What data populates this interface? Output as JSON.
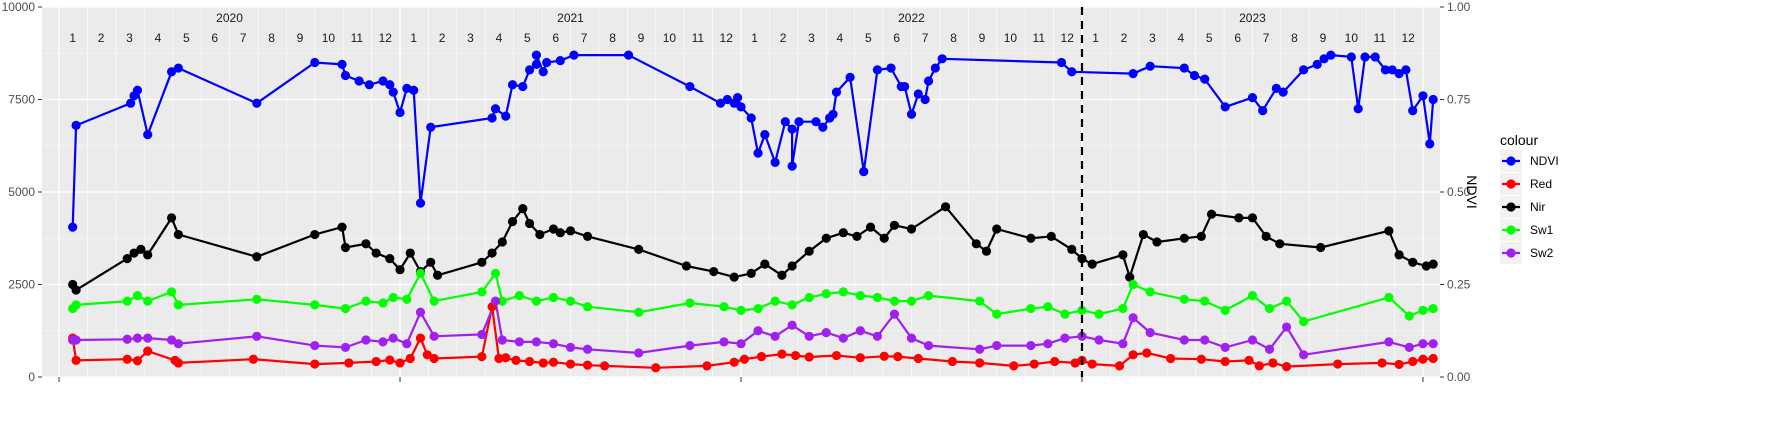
{
  "chart_data": {
    "type": "line",
    "title": "",
    "xlabel": "",
    "ylabel_left": "",
    "ylabel_right": "NDVI",
    "ylim_left": [
      0,
      10000
    ],
    "ylim_right": [
      0,
      1
    ],
    "yticks_left": [
      "0",
      "2500",
      "5000",
      "7500",
      "10000"
    ],
    "yticks_left_values": [
      0,
      2500,
      5000,
      7500,
      10000
    ],
    "yticks_right": [
      "0.00",
      "0.25",
      "0.50",
      "0.75",
      "1.00"
    ],
    "yticks_right_values": [
      0,
      0.25,
      0.5,
      0.75,
      1.0
    ],
    "xlim": [
      2019.95,
      2024.05
    ],
    "year_labels": [
      "2020",
      "2021",
      "2022",
      "2023"
    ],
    "year_positions": [
      2020.5,
      2021.5,
      2022.5,
      2023.5
    ],
    "month_labels": [
      "1",
      "2",
      "3",
      "4",
      "5",
      "6",
      "7",
      "8",
      "9",
      "10",
      "11",
      "12",
      "1",
      "2",
      "3",
      "4",
      "5",
      "6",
      "7",
      "8",
      "9",
      "10",
      "11",
      "12",
      "1",
      "2",
      "3",
      "4",
      "5",
      "6",
      "7",
      "8",
      "9",
      "10",
      "11",
      "12",
      "1",
      "2",
      "3",
      "4",
      "5",
      "6",
      "7",
      "8",
      "9",
      "10",
      "11",
      "12"
    ],
    "x_major_breaks": [
      2020,
      2021,
      2022,
      2023,
      2024
    ],
    "vline_x": 2023.0,
    "grid": true,
    "background": "#EBEBEB",
    "legend": {
      "title": "colour",
      "position": "right",
      "entries": [
        "NDVI",
        "Red",
        "Nir",
        "Sw1",
        "Sw2"
      ]
    },
    "series": [
      {
        "name": "NDVI",
        "color": "#0000FF",
        "x": [
          2020.04,
          2020.05,
          2020.21,
          2020.22,
          2020.23,
          2020.26,
          2020.33,
          2020.35,
          2020.58,
          2020.75,
          2020.83,
          2020.84,
          2020.88,
          2020.91,
          2020.95,
          2020.97,
          2020.98,
          2021.0,
          2021.02,
          2021.04,
          2021.06,
          2021.09,
          2021.27,
          2021.28,
          2021.31,
          2021.33,
          2021.36,
          2021.38,
          2021.4,
          2021.4,
          2021.42,
          2021.43,
          2021.47,
          2021.51,
          2021.67,
          2021.85,
          2021.94,
          2021.96,
          2021.98,
          2021.99,
          2022.0,
          2022.03,
          2022.05,
          2022.07,
          2022.1,
          2022.13,
          2022.15,
          2022.15,
          2022.17,
          2022.22,
          2022.24,
          2022.26,
          2022.27,
          2022.28,
          2022.32,
          2022.36,
          2022.4,
          2022.44,
          2022.47,
          2022.48,
          2022.5,
          2022.52,
          2022.54,
          2022.55,
          2022.57,
          2022.59,
          2022.94,
          2022.97,
          2023.15,
          2023.2,
          2023.3,
          2023.33,
          2023.36,
          2023.42,
          2023.5,
          2023.53,
          2023.57,
          2023.59,
          2023.65,
          2023.69,
          2023.71,
          2023.73,
          2023.79,
          2023.81,
          2023.83,
          2023.86,
          2023.89,
          2023.91,
          2023.93,
          2023.95,
          2023.97,
          2024.0,
          2024.02,
          2024.03
        ],
        "y": [
          4050,
          6800,
          7400,
          7600,
          7750,
          6550,
          8250,
          8350,
          7400,
          8500,
          8450,
          8150,
          8000,
          7900,
          8000,
          7900,
          7700,
          7150,
          7800,
          7750,
          4700,
          6750,
          7000,
          7250,
          7050,
          7900,
          7850,
          8300,
          8450,
          8700,
          8250,
          8500,
          8550,
          8700,
          8700,
          7850,
          7400,
          7500,
          7400,
          7550,
          7300,
          7000,
          6050,
          6550,
          5800,
          6900,
          6700,
          5700,
          6900,
          6900,
          6750,
          7000,
          7100,
          7700,
          8100,
          5550,
          8300,
          8350,
          7850,
          7850,
          7100,
          7650,
          7500,
          8000,
          8350,
          8600,
          8500,
          8250,
          8200,
          8400,
          8350,
          8150,
          8050,
          7300,
          7550,
          7200,
          7800,
          7700,
          8300,
          8450,
          8600,
          8700,
          8650,
          7250,
          8650,
          8650,
          8300,
          8300,
          8200,
          8300,
          7200,
          7600,
          6300,
          7500
        ]
      },
      {
        "name": "Red",
        "color": "#FF0000",
        "x": [
          2020.04,
          2020.05,
          2020.2,
          2020.23,
          2020.26,
          2020.34,
          2020.35,
          2020.57,
          2020.75,
          2020.85,
          2020.93,
          2020.97,
          2021.0,
          2021.03,
          2021.06,
          2021.08,
          2021.1,
          2021.24,
          2021.27,
          2021.29,
          2021.31,
          2021.34,
          2021.38,
          2021.42,
          2021.45,
          2021.5,
          2021.55,
          2021.6,
          2021.75,
          2021.9,
          2021.98,
          2022.01,
          2022.06,
          2022.12,
          2022.16,
          2022.2,
          2022.28,
          2022.35,
          2022.42,
          2022.46,
          2022.52,
          2022.62,
          2022.7,
          2022.8,
          2022.86,
          2022.92,
          2022.98,
          2023.0,
          2023.03,
          2023.11,
          2023.15,
          2023.19,
          2023.26,
          2023.35,
          2023.42,
          2023.49,
          2023.52,
          2023.56,
          2023.6,
          2023.75,
          2023.88,
          2023.93,
          2023.97,
          2024.0,
          2024.03
        ],
        "y": [
          1050,
          450,
          480,
          440,
          700,
          450,
          380,
          480,
          350,
          380,
          420,
          460,
          380,
          500,
          1050,
          600,
          500,
          550,
          1900,
          500,
          520,
          450,
          420,
          380,
          400,
          350,
          320,
          300,
          250,
          300,
          400,
          480,
          550,
          620,
          580,
          540,
          580,
          520,
          560,
          550,
          500,
          420,
          380,
          300,
          350,
          420,
          380,
          450,
          350,
          300,
          600,
          650,
          500,
          480,
          420,
          450,
          300,
          380,
          280,
          350,
          380,
          340,
          420,
          480,
          500
        ]
      },
      {
        "name": "Nir",
        "color": "#000000",
        "x": [
          2020.04,
          2020.05,
          2020.2,
          2020.22,
          2020.24,
          2020.26,
          2020.33,
          2020.35,
          2020.58,
          2020.75,
          2020.83,
          2020.84,
          2020.9,
          2020.93,
          2020.97,
          2021.0,
          2021.03,
          2021.06,
          2021.09,
          2021.11,
          2021.24,
          2021.27,
          2021.3,
          2021.33,
          2021.36,
          2021.38,
          2021.41,
          2021.45,
          2021.47,
          2021.5,
          2021.55,
          2021.7,
          2021.84,
          2021.92,
          2021.98,
          2022.03,
          2022.07,
          2022.12,
          2022.15,
          2022.2,
          2022.25,
          2022.3,
          2022.34,
          2022.38,
          2022.42,
          2022.45,
          2022.5,
          2022.6,
          2022.69,
          2022.72,
          2022.75,
          2022.85,
          2022.91,
          2022.97,
          2023.0,
          2023.03,
          2023.12,
          2023.14,
          2023.18,
          2023.22,
          2023.3,
          2023.35,
          2023.38,
          2023.46,
          2023.5,
          2023.54,
          2023.58,
          2023.7,
          2023.9,
          2023.93,
          2023.97,
          2024.01,
          2024.03
        ],
        "y": [
          2500,
          2350,
          3200,
          3350,
          3450,
          3300,
          4300,
          3850,
          3250,
          3850,
          4050,
          3500,
          3600,
          3350,
          3200,
          2900,
          3350,
          2850,
          3100,
          2750,
          3100,
          3350,
          3650,
          4200,
          4550,
          4150,
          3850,
          4000,
          3900,
          3950,
          3800,
          3450,
          3000,
          2850,
          2700,
          2800,
          3050,
          2750,
          3000,
          3400,
          3750,
          3900,
          3800,
          4050,
          3750,
          4100,
          4000,
          4600,
          3600,
          3400,
          4000,
          3750,
          3800,
          3450,
          3200,
          3050,
          3300,
          2700,
          3850,
          3650,
          3750,
          3800,
          4400,
          4300,
          4300,
          3800,
          3600,
          3500,
          3950,
          3300,
          3100,
          3000,
          3050
        ]
      },
      {
        "name": "Sw1",
        "color": "#00FF00",
        "x": [
          2020.04,
          2020.05,
          2020.2,
          2020.23,
          2020.26,
          2020.33,
          2020.35,
          2020.58,
          2020.75,
          2020.84,
          2020.9,
          2020.95,
          2020.98,
          2021.02,
          2021.06,
          2021.1,
          2021.24,
          2021.28,
          2021.3,
          2021.35,
          2021.4,
          2021.45,
          2021.5,
          2021.55,
          2021.7,
          2021.85,
          2021.95,
          2022.0,
          2022.05,
          2022.1,
          2022.15,
          2022.2,
          2022.25,
          2022.3,
          2022.35,
          2022.4,
          2022.45,
          2022.5,
          2022.55,
          2022.7,
          2022.75,
          2022.85,
          2022.9,
          2022.95,
          2023.0,
          2023.05,
          2023.12,
          2023.15,
          2023.2,
          2023.3,
          2023.36,
          2023.42,
          2023.5,
          2023.55,
          2023.6,
          2023.65,
          2023.9,
          2023.96,
          2024.0,
          2024.03
        ],
        "y": [
          1850,
          1950,
          2050,
          2200,
          2050,
          2300,
          1950,
          2100,
          1950,
          1850,
          2050,
          2000,
          2150,
          2100,
          2800,
          2050,
          2300,
          2800,
          2050,
          2200,
          2050,
          2150,
          2050,
          1900,
          1750,
          2000,
          1900,
          1800,
          1850,
          2050,
          1950,
          2150,
          2250,
          2300,
          2200,
          2150,
          2050,
          2050,
          2200,
          2050,
          1700,
          1850,
          1900,
          1700,
          1800,
          1700,
          1850,
          2500,
          2300,
          2100,
          2050,
          1800,
          2200,
          1850,
          2050,
          1500,
          2150,
          1650,
          1800,
          1850
        ]
      },
      {
        "name": "Sw2",
        "color": "#A020F0",
        "x": [
          2020.04,
          2020.05,
          2020.2,
          2020.23,
          2020.26,
          2020.33,
          2020.35,
          2020.58,
          2020.75,
          2020.84,
          2020.9,
          2020.95,
          2020.98,
          2021.02,
          2021.06,
          2021.1,
          2021.24,
          2021.28,
          2021.3,
          2021.35,
          2021.4,
          2021.45,
          2021.5,
          2021.55,
          2021.7,
          2021.85,
          2021.95,
          2022.0,
          2022.05,
          2022.1,
          2022.15,
          2022.2,
          2022.25,
          2022.3,
          2022.35,
          2022.4,
          2022.45,
          2022.5,
          2022.55,
          2022.7,
          2022.75,
          2022.85,
          2022.9,
          2022.95,
          2023.0,
          2023.05,
          2023.12,
          2023.15,
          2023.2,
          2023.3,
          2023.36,
          2023.42,
          2023.5,
          2023.55,
          2023.6,
          2023.65,
          2023.9,
          2023.96,
          2024.0,
          2024.03
        ],
        "y": [
          1000,
          1000,
          1020,
          1050,
          1050,
          1000,
          900,
          1100,
          850,
          800,
          1000,
          950,
          1050,
          900,
          1750,
          1100,
          1150,
          2050,
          1000,
          950,
          950,
          900,
          800,
          750,
          650,
          850,
          950,
          900,
          1250,
          1100,
          1400,
          1100,
          1200,
          1050,
          1250,
          1100,
          1700,
          1050,
          850,
          750,
          850,
          850,
          900,
          1050,
          1100,
          1000,
          900,
          1600,
          1200,
          1000,
          1000,
          800,
          1000,
          750,
          1350,
          600,
          950,
          800,
          900,
          900
        ]
      }
    ]
  }
}
